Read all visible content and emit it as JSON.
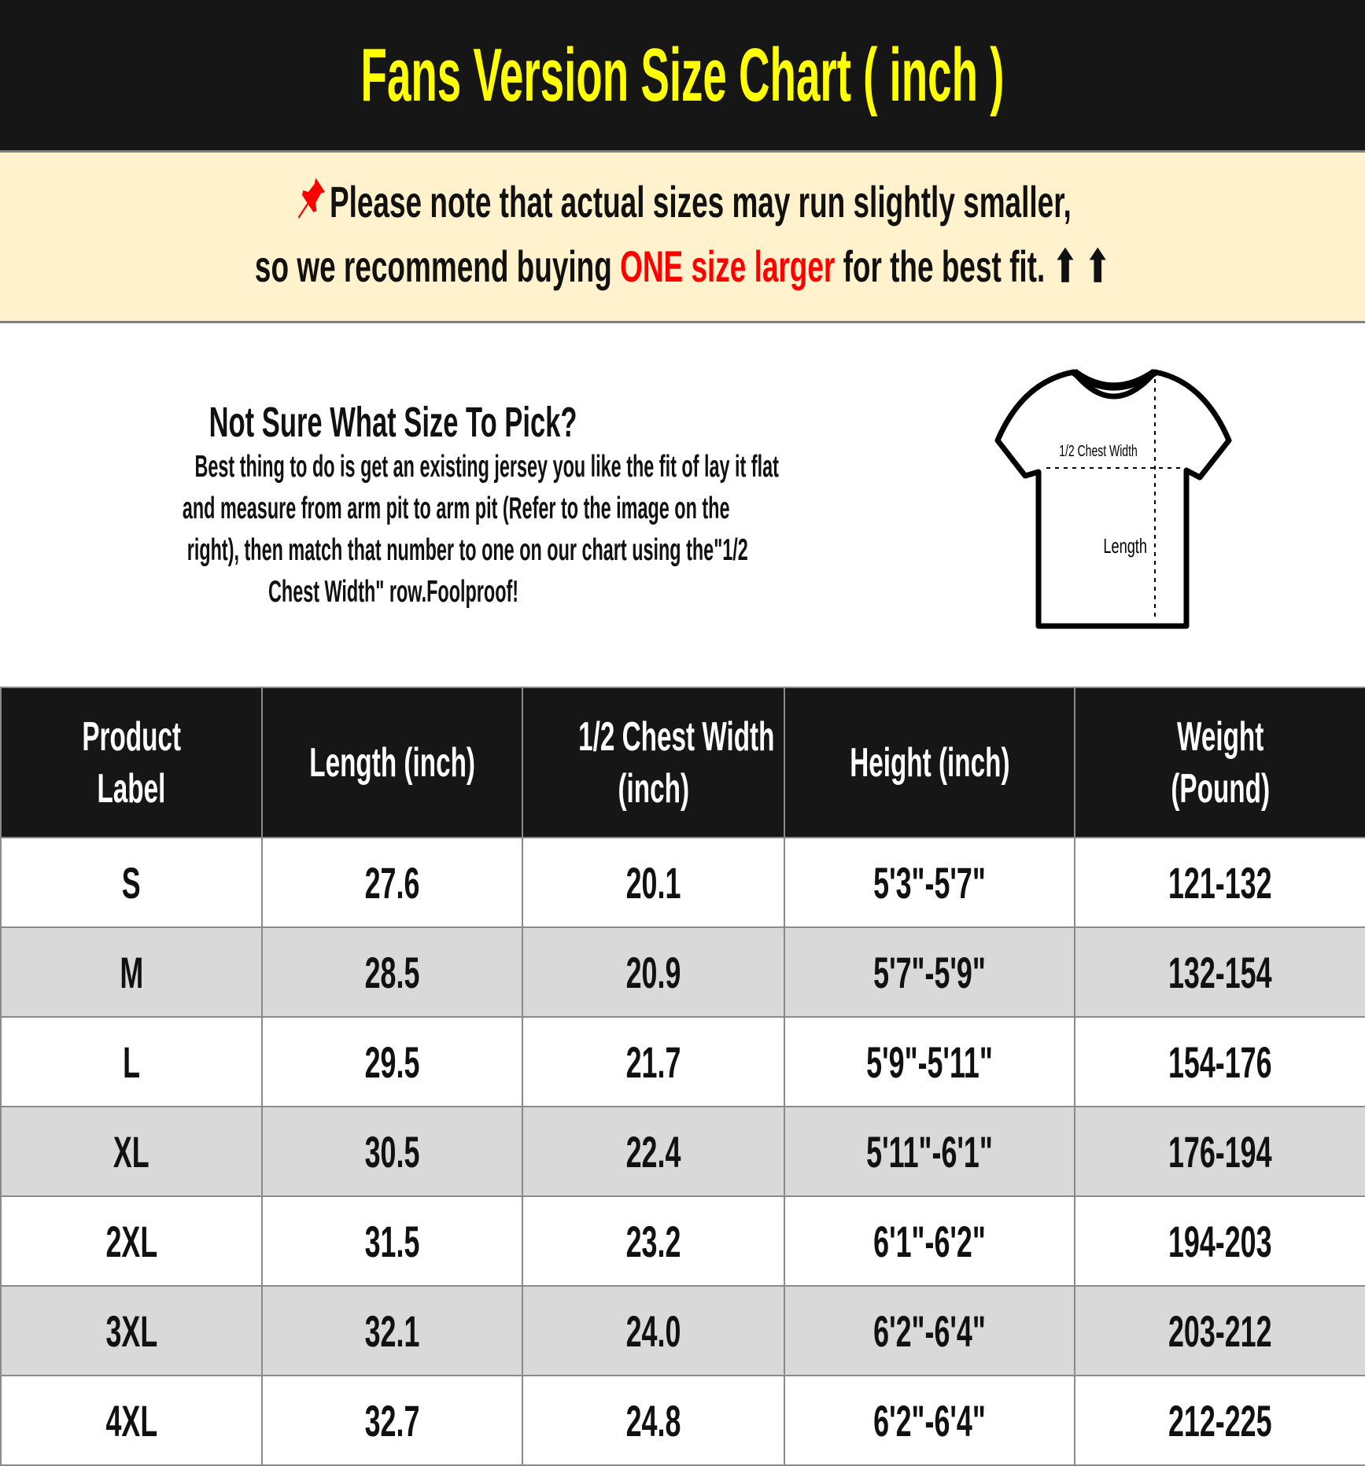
{
  "title": "Fans Version Size Chart ( inch )",
  "note": {
    "icon": "pushpin-icon",
    "line1": "Please note that actual sizes may run slightly smaller,",
    "line2_before": "so we recommend buying",
    "line2_highlight": "ONE size larger",
    "line2_after": "for the best fit.",
    "arrows": "⬆ ⬆",
    "highlight_color": "#ff0000"
  },
  "info": {
    "heading": "Not Sure What Size To Pick?",
    "lines": [
      "Best thing to do is get an existing jersey you like the fit of lay it flat",
      "and measure from arm pit to arm pit (Refer to the image on the",
      "right), then match that number to one on our chart using the\"1/2",
      "Chest Width\" row.Foolproof!"
    ],
    "diagram": {
      "chest_label": "1/2 Chest Width",
      "length_label": "Length"
    }
  },
  "table": {
    "headers": [
      [
        "Product",
        "Label"
      ],
      [
        "Length (inch)"
      ],
      [
        "1/2 Chest Width",
        "(inch)"
      ],
      [
        "Height (inch)"
      ],
      [
        "Weight",
        "(Pound)"
      ]
    ],
    "rows": [
      [
        "S",
        "27.6",
        "20.1",
        "5'3\"-5'7\"",
        "121-132"
      ],
      [
        "M",
        "28.5",
        "20.9",
        "5'7\"-5'9\"",
        "132-154"
      ],
      [
        "L",
        "29.5",
        "21.7",
        "5'9\"-5'11\"",
        "154-176"
      ],
      [
        "XL",
        "30.5",
        "22.4",
        "5'11\"-6'1\"",
        "176-194"
      ],
      [
        "2XL",
        "31.5",
        "23.2",
        "6'1\"-6'2\"",
        "194-203"
      ],
      [
        "3XL",
        "32.1",
        "24.0",
        "6'2\"-6'4\"",
        "203-212"
      ],
      [
        "4XL",
        "32.7",
        "24.8",
        "6'2\"-6'4\"",
        "212-225"
      ]
    ]
  },
  "colors": {
    "header_bg": "#161616",
    "title": "#ffff00",
    "note_bg": "#fff2cc",
    "alt_row": "#d9d9d9"
  }
}
